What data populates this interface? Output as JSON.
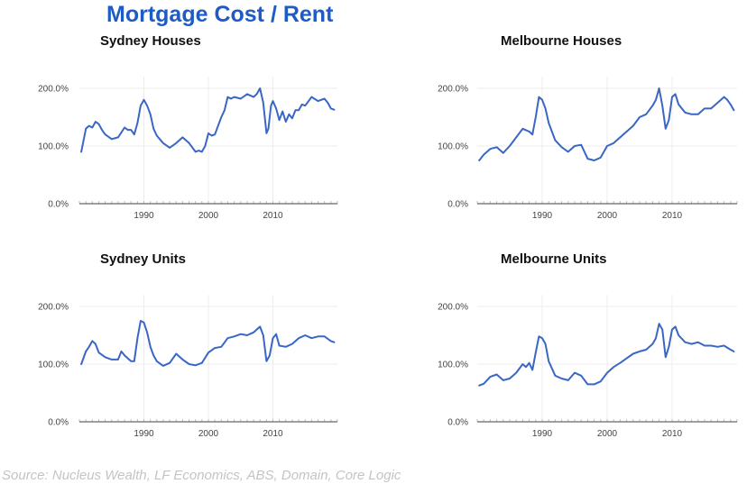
{
  "title": "Mortgage Cost / Rent",
  "source": "Source: Nucleus Wealth, LF Economics, ABS, Domain, Core Logic",
  "chart_data": [
    {
      "type": "line",
      "title": "Sydney Houses",
      "xlim": [
        1980,
        2020
      ],
      "ylim": [
        0,
        2.2
      ],
      "y_ticks": [
        0,
        1,
        2
      ],
      "y_tick_labels": [
        "0.0%",
        "100.0%",
        "200.0%"
      ],
      "x_ticks": [
        1990,
        2000,
        2010
      ],
      "x_tick_labels": [
        "1990",
        "2000",
        "2010"
      ],
      "grid": true,
      "colors": {
        "line": "#3a66c4"
      },
      "series": [
        {
          "x": [
            1980.3,
            1981,
            1981.5,
            1982,
            1982.5,
            1983,
            1983.5,
            1984,
            1985,
            1986,
            1987,
            1987.5,
            1988,
            1988.5,
            1989,
            1989.5,
            1990,
            1990.5,
            1991,
            1991.5,
            1992,
            1993,
            1994,
            1995,
            1996,
            1997,
            1998,
            1998.5,
            1999,
            1999.5,
            2000,
            2000.5,
            2001,
            2002,
            2002.5,
            2003,
            2003.5,
            2004,
            2005,
            2006,
            2007,
            2007.5,
            2008,
            2008.5,
            2009,
            2009.3,
            2009.7,
            2010,
            2010.5,
            2011,
            2011.5,
            2012,
            2012.5,
            2013,
            2013.5,
            2014,
            2014.5,
            2015,
            2016,
            2017,
            2018,
            2018.5,
            2019,
            2019.5
          ],
          "y": [
            0.9,
            1.3,
            1.35,
            1.32,
            1.42,
            1.38,
            1.28,
            1.2,
            1.12,
            1.15,
            1.32,
            1.28,
            1.28,
            1.2,
            1.4,
            1.7,
            1.8,
            1.7,
            1.55,
            1.3,
            1.18,
            1.05,
            0.97,
            1.05,
            1.15,
            1.05,
            0.9,
            0.92,
            0.9,
            1.0,
            1.22,
            1.18,
            1.2,
            1.5,
            1.62,
            1.85,
            1.82,
            1.85,
            1.82,
            1.9,
            1.85,
            1.9,
            2.0,
            1.75,
            1.22,
            1.3,
            1.7,
            1.78,
            1.65,
            1.45,
            1.6,
            1.42,
            1.55,
            1.48,
            1.62,
            1.62,
            1.72,
            1.7,
            1.85,
            1.78,
            1.82,
            1.75,
            1.65,
            1.63
          ]
        }
      ]
    },
    {
      "type": "line",
      "title": "Melbourne Houses",
      "xlim": [
        1980,
        2020
      ],
      "ylim": [
        0,
        2.2
      ],
      "y_ticks": [
        0,
        1,
        2
      ],
      "y_tick_labels": [
        "0.0%",
        "100.0%",
        "200.0%"
      ],
      "x_ticks": [
        1990,
        2000,
        2010
      ],
      "x_tick_labels": [
        "1990",
        "2000",
        "2010"
      ],
      "grid": true,
      "colors": {
        "line": "#3a66c4"
      },
      "series": [
        {
          "x": [
            1980.3,
            1981,
            1982,
            1983,
            1984,
            1985,
            1986,
            1987,
            1988,
            1988.5,
            1989,
            1989.5,
            1990,
            1990.5,
            1991,
            1992,
            1993,
            1994,
            1995,
            1996,
            1997,
            1998,
            1999,
            2000,
            2001,
            2002,
            2003,
            2004,
            2005,
            2006,
            2007,
            2007.5,
            2008,
            2008.5,
            2009,
            2009.5,
            2010,
            2010.5,
            2011,
            2012,
            2013,
            2014,
            2015,
            2016,
            2017,
            2018,
            2018.5,
            2019,
            2019.5
          ],
          "y": [
            0.75,
            0.85,
            0.95,
            0.98,
            0.88,
            1.0,
            1.15,
            1.3,
            1.25,
            1.2,
            1.5,
            1.85,
            1.8,
            1.65,
            1.4,
            1.1,
            0.98,
            0.9,
            1.0,
            1.02,
            0.78,
            0.75,
            0.8,
            1.0,
            1.05,
            1.15,
            1.25,
            1.35,
            1.5,
            1.55,
            1.7,
            1.8,
            2.0,
            1.7,
            1.3,
            1.45,
            1.85,
            1.9,
            1.72,
            1.58,
            1.55,
            1.55,
            1.65,
            1.65,
            1.75,
            1.85,
            1.8,
            1.72,
            1.62
          ]
        }
      ]
    },
    {
      "type": "line",
      "title": "Sydney Units",
      "xlim": [
        1980,
        2020
      ],
      "ylim": [
        0,
        2.2
      ],
      "y_ticks": [
        0,
        1,
        2
      ],
      "y_tick_labels": [
        "0.0%",
        "100.0%",
        "200.0%"
      ],
      "x_ticks": [
        1990,
        2000,
        2010
      ],
      "x_tick_labels": [
        "1990",
        "2000",
        "2010"
      ],
      "grid": true,
      "colors": {
        "line": "#3a66c4"
      },
      "series": [
        {
          "x": [
            1980.3,
            1981,
            1981.5,
            1982,
            1982.5,
            1983,
            1984,
            1985,
            1986,
            1986.5,
            1987,
            1988,
            1988.5,
            1989,
            1989.5,
            1990,
            1990.5,
            1991,
            1991.5,
            1992,
            1993,
            1994,
            1995,
            1996,
            1997,
            1998,
            1999,
            2000,
            2001,
            2002,
            2003,
            2004,
            2005,
            2006,
            2007,
            2008,
            2008.5,
            2009,
            2009.5,
            2010,
            2010.5,
            2011,
            2012,
            2013,
            2014,
            2015,
            2016,
            2017,
            2018,
            2019,
            2019.5
          ],
          "y": [
            1.0,
            1.22,
            1.3,
            1.4,
            1.35,
            1.2,
            1.12,
            1.08,
            1.08,
            1.22,
            1.15,
            1.05,
            1.05,
            1.45,
            1.75,
            1.72,
            1.55,
            1.3,
            1.15,
            1.05,
            0.97,
            1.02,
            1.18,
            1.08,
            1.0,
            0.98,
            1.02,
            1.2,
            1.28,
            1.3,
            1.45,
            1.48,
            1.52,
            1.5,
            1.55,
            1.65,
            1.5,
            1.05,
            1.15,
            1.45,
            1.52,
            1.32,
            1.3,
            1.35,
            1.45,
            1.5,
            1.45,
            1.48,
            1.48,
            1.4,
            1.38
          ]
        }
      ]
    },
    {
      "type": "line",
      "title": "Melbourne Units",
      "xlim": [
        1980,
        2020
      ],
      "ylim": [
        0,
        2.2
      ],
      "y_ticks": [
        0,
        1,
        2
      ],
      "y_tick_labels": [
        "0.0%",
        "100.0%",
        "200.0%"
      ],
      "x_ticks": [
        1990,
        2000,
        2010
      ],
      "x_tick_labels": [
        "1990",
        "2000",
        "2010"
      ],
      "grid": true,
      "colors": {
        "line": "#3a66c4"
      },
      "series": [
        {
          "x": [
            1980.3,
            1981,
            1982,
            1983,
            1984,
            1985,
            1986,
            1987,
            1987.5,
            1988,
            1988.5,
            1989,
            1989.5,
            1990,
            1990.5,
            1991,
            1992,
            1993,
            1994,
            1995,
            1996,
            1997,
            1998,
            1999,
            2000,
            2001,
            2002,
            2003,
            2004,
            2005,
            2006,
            2007,
            2007.5,
            2008,
            2008.5,
            2009,
            2009.5,
            2010,
            2010.5,
            2011,
            2012,
            2013,
            2014,
            2015,
            2016,
            2017,
            2018,
            2019,
            2019.5
          ],
          "y": [
            0.63,
            0.66,
            0.78,
            0.82,
            0.72,
            0.75,
            0.85,
            1.0,
            0.95,
            1.02,
            0.9,
            1.2,
            1.48,
            1.45,
            1.35,
            1.05,
            0.8,
            0.75,
            0.72,
            0.85,
            0.8,
            0.65,
            0.65,
            0.7,
            0.85,
            0.95,
            1.02,
            1.1,
            1.18,
            1.22,
            1.25,
            1.35,
            1.45,
            1.7,
            1.6,
            1.12,
            1.3,
            1.6,
            1.65,
            1.5,
            1.38,
            1.35,
            1.38,
            1.32,
            1.32,
            1.3,
            1.32,
            1.25,
            1.22
          ]
        }
      ]
    }
  ]
}
